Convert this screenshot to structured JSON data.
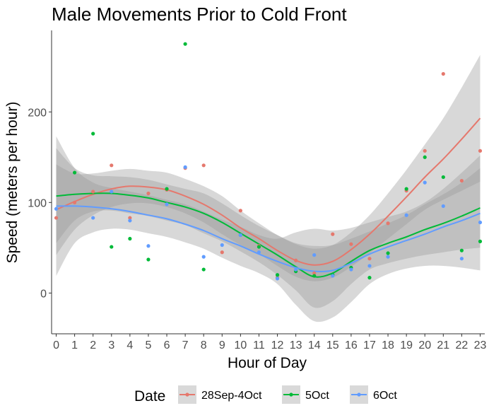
{
  "chart_data": {
    "type": "scatter",
    "title": "Male Movements Prior to Cold Front",
    "xlabel": "Hour of Day",
    "ylabel": "Speed (meters per hour)",
    "xlim": [
      -0.25,
      23.25
    ],
    "ylim": [
      -45,
      290
    ],
    "x_ticks": [
      0,
      1,
      2,
      3,
      4,
      5,
      6,
      7,
      8,
      9,
      10,
      11,
      12,
      13,
      14,
      15,
      16,
      17,
      18,
      19,
      20,
      21,
      22,
      23
    ],
    "y_ticks": [
      0,
      100,
      200
    ],
    "grid": false,
    "legend": {
      "title": "Date",
      "position": "bottom"
    },
    "series": [
      {
        "name": "28Sep-4Oct",
        "color": "#E5786D",
        "points": [
          [
            0,
            83
          ],
          [
            1,
            100
          ],
          [
            2,
            112
          ],
          [
            3,
            141
          ],
          [
            4,
            83
          ],
          [
            5,
            110
          ],
          [
            6,
            114
          ],
          [
            7,
            138
          ],
          [
            8,
            141
          ],
          [
            9,
            45
          ],
          [
            10,
            91
          ],
          [
            11,
            52
          ],
          [
            12,
            17
          ],
          [
            13,
            36
          ],
          [
            14,
            22
          ],
          [
            15,
            65
          ],
          [
            16,
            54
          ],
          [
            17,
            38
          ],
          [
            18,
            77
          ],
          [
            19,
            113
          ],
          [
            20,
            157
          ],
          [
            21,
            242
          ],
          [
            22,
            124
          ],
          [
            23,
            157
          ]
        ],
        "fit": [
          [
            0,
            92
          ],
          [
            1,
            101
          ],
          [
            2,
            109
          ],
          [
            3,
            115
          ],
          [
            4,
            118
          ],
          [
            5,
            117
          ],
          [
            6,
            114
          ],
          [
            7,
            107
          ],
          [
            8,
            98
          ],
          [
            9,
            86
          ],
          [
            10,
            72
          ],
          [
            11,
            60
          ],
          [
            12,
            47
          ],
          [
            13,
            36
          ],
          [
            14,
            31
          ],
          [
            15,
            35
          ],
          [
            16,
            48
          ],
          [
            17,
            65
          ],
          [
            18,
            85
          ],
          [
            19,
            106
          ],
          [
            20,
            128
          ],
          [
            21,
            148
          ],
          [
            22,
            170
          ],
          [
            23,
            193
          ]
        ],
        "band_low": [
          [
            0,
            42
          ],
          [
            1,
            70
          ],
          [
            2,
            86
          ],
          [
            3,
            95
          ],
          [
            4,
            99
          ],
          [
            5,
            99
          ],
          [
            6,
            95
          ],
          [
            7,
            88
          ],
          [
            8,
            78
          ],
          [
            9,
            65
          ],
          [
            10,
            53
          ],
          [
            11,
            43
          ],
          [
            12,
            30
          ],
          [
            13,
            18
          ],
          [
            14,
            13
          ],
          [
            15,
            17
          ],
          [
            16,
            29
          ],
          [
            17,
            44
          ],
          [
            18,
            60
          ],
          [
            19,
            76
          ],
          [
            20,
            92
          ],
          [
            21,
            103
          ],
          [
            22,
            113
          ],
          [
            23,
            123
          ]
        ],
        "band_high": [
          [
            0,
            142
          ],
          [
            1,
            132
          ],
          [
            2,
            132
          ],
          [
            3,
            135
          ],
          [
            4,
            137
          ],
          [
            5,
            135
          ],
          [
            6,
            133
          ],
          [
            7,
            126
          ],
          [
            8,
            118
          ],
          [
            9,
            107
          ],
          [
            10,
            91
          ],
          [
            11,
            77
          ],
          [
            12,
            64
          ],
          [
            13,
            54
          ],
          [
            14,
            49
          ],
          [
            15,
            53
          ],
          [
            16,
            67
          ],
          [
            17,
            86
          ],
          [
            18,
            110
          ],
          [
            19,
            136
          ],
          [
            20,
            164
          ],
          [
            21,
            193
          ],
          [
            22,
            227
          ],
          [
            23,
            263
          ]
        ]
      },
      {
        "name": "5Oct",
        "color": "#00BA38",
        "points": [
          [
            1,
            133
          ],
          [
            2,
            176
          ],
          [
            3,
            51
          ],
          [
            4,
            60
          ],
          [
            5,
            37
          ],
          [
            6,
            115
          ],
          [
            7,
            275
          ],
          [
            8,
            26
          ],
          [
            10,
            64
          ],
          [
            11,
            51
          ],
          [
            12,
            20
          ],
          [
            13,
            24
          ],
          [
            14,
            19
          ],
          [
            15,
            20
          ],
          [
            16,
            28
          ],
          [
            17,
            17
          ],
          [
            18,
            44
          ],
          [
            19,
            115
          ],
          [
            20,
            150
          ],
          [
            21,
            128
          ],
          [
            22,
            47
          ],
          [
            23,
            57
          ]
        ],
        "fit": [
          [
            0,
            107
          ],
          [
            1,
            109
          ],
          [
            2,
            110
          ],
          [
            3,
            110
          ],
          [
            4,
            108
          ],
          [
            5,
            105
          ],
          [
            6,
            100
          ],
          [
            7,
            95
          ],
          [
            8,
            88
          ],
          [
            9,
            78
          ],
          [
            10,
            66
          ],
          [
            11,
            54
          ],
          [
            12,
            42
          ],
          [
            13,
            29
          ],
          [
            14,
            18
          ],
          [
            15,
            22
          ],
          [
            16,
            35
          ],
          [
            17,
            47
          ],
          [
            18,
            55
          ],
          [
            19,
            62
          ],
          [
            20,
            70
          ],
          [
            21,
            77
          ],
          [
            22,
            85
          ],
          [
            23,
            94
          ]
        ],
        "band_low": [
          [
            0,
            55
          ],
          [
            1,
            80
          ],
          [
            2,
            90
          ],
          [
            3,
            91
          ],
          [
            4,
            88
          ],
          [
            5,
            85
          ],
          [
            6,
            80
          ],
          [
            7,
            75
          ],
          [
            8,
            66
          ],
          [
            9,
            57
          ],
          [
            10,
            46
          ],
          [
            11,
            34
          ],
          [
            12,
            20
          ],
          [
            13,
            3
          ],
          [
            14,
            -16
          ],
          [
            15,
            -9
          ],
          [
            16,
            10
          ],
          [
            17,
            26
          ],
          [
            18,
            33
          ],
          [
            19,
            38
          ],
          [
            20,
            42
          ],
          [
            21,
            45
          ],
          [
            22,
            48
          ],
          [
            23,
            50
          ]
        ],
        "band_high": [
          [
            0,
            160
          ],
          [
            1,
            138
          ],
          [
            2,
            130
          ],
          [
            3,
            129
          ],
          [
            4,
            128
          ],
          [
            5,
            125
          ],
          [
            6,
            120
          ],
          [
            7,
            115
          ],
          [
            8,
            110
          ],
          [
            9,
            99
          ],
          [
            10,
            86
          ],
          [
            11,
            74
          ],
          [
            12,
            64
          ],
          [
            13,
            55
          ],
          [
            14,
            52
          ],
          [
            15,
            53
          ],
          [
            16,
            60
          ],
          [
            17,
            68
          ],
          [
            18,
            77
          ],
          [
            19,
            86
          ],
          [
            20,
            98
          ],
          [
            21,
            109
          ],
          [
            22,
            122
          ],
          [
            23,
            138
          ]
        ]
      },
      {
        "name": "6Oct",
        "color": "#619CFF",
        "points": [
          [
            0,
            93
          ],
          [
            2,
            83
          ],
          [
            3,
            112
          ],
          [
            4,
            80
          ],
          [
            5,
            52
          ],
          [
            6,
            98
          ],
          [
            7,
            139
          ],
          [
            8,
            40
          ],
          [
            9,
            53
          ],
          [
            10,
            64
          ],
          [
            11,
            45
          ],
          [
            12,
            16
          ],
          [
            13,
            26
          ],
          [
            14,
            42
          ],
          [
            15,
            19
          ],
          [
            16,
            26
          ],
          [
            17,
            30
          ],
          [
            18,
            40
          ],
          [
            19,
            86
          ],
          [
            20,
            122
          ],
          [
            21,
            96
          ],
          [
            22,
            38
          ],
          [
            23,
            78
          ]
        ],
        "fit": [
          [
            0,
            96
          ],
          [
            1,
            96
          ],
          [
            2,
            95
          ],
          [
            3,
            93
          ],
          [
            4,
            90
          ],
          [
            5,
            86
          ],
          [
            6,
            82
          ],
          [
            7,
            76
          ],
          [
            8,
            69
          ],
          [
            9,
            60
          ],
          [
            10,
            52
          ],
          [
            11,
            43
          ],
          [
            12,
            35
          ],
          [
            13,
            28
          ],
          [
            14,
            24
          ],
          [
            15,
            25
          ],
          [
            16,
            33
          ],
          [
            17,
            43
          ],
          [
            18,
            51
          ],
          [
            19,
            58
          ],
          [
            20,
            65
          ],
          [
            21,
            73
          ],
          [
            22,
            80
          ],
          [
            23,
            88
          ]
        ],
        "band_low": [
          [
            0,
            19
          ],
          [
            1,
            55
          ],
          [
            2,
            67
          ],
          [
            3,
            71
          ],
          [
            4,
            70
          ],
          [
            5,
            66
          ],
          [
            6,
            62
          ],
          [
            7,
            56
          ],
          [
            8,
            49
          ],
          [
            9,
            39
          ],
          [
            10,
            30
          ],
          [
            11,
            22
          ],
          [
            12,
            10
          ],
          [
            13,
            -13
          ],
          [
            14,
            -31
          ],
          [
            15,
            -27
          ],
          [
            16,
            -10
          ],
          [
            17,
            10
          ],
          [
            18,
            21
          ],
          [
            19,
            27
          ],
          [
            20,
            30
          ],
          [
            21,
            30
          ],
          [
            22,
            28
          ],
          [
            23,
            25
          ]
        ],
        "band_high": [
          [
            0,
            173
          ],
          [
            1,
            138
          ],
          [
            2,
            122
          ],
          [
            3,
            116
          ],
          [
            4,
            112
          ],
          [
            5,
            108
          ],
          [
            6,
            103
          ],
          [
            7,
            98
          ],
          [
            8,
            90
          ],
          [
            9,
            81
          ],
          [
            10,
            73
          ],
          [
            11,
            64
          ],
          [
            12,
            60
          ],
          [
            13,
            67
          ],
          [
            14,
            71
          ],
          [
            15,
            69
          ],
          [
            16,
            72
          ],
          [
            17,
            78
          ],
          [
            18,
            84
          ],
          [
            19,
            90
          ],
          [
            20,
            100
          ],
          [
            21,
            115
          ],
          [
            22,
            133
          ],
          [
            23,
            152
          ]
        ]
      }
    ]
  }
}
